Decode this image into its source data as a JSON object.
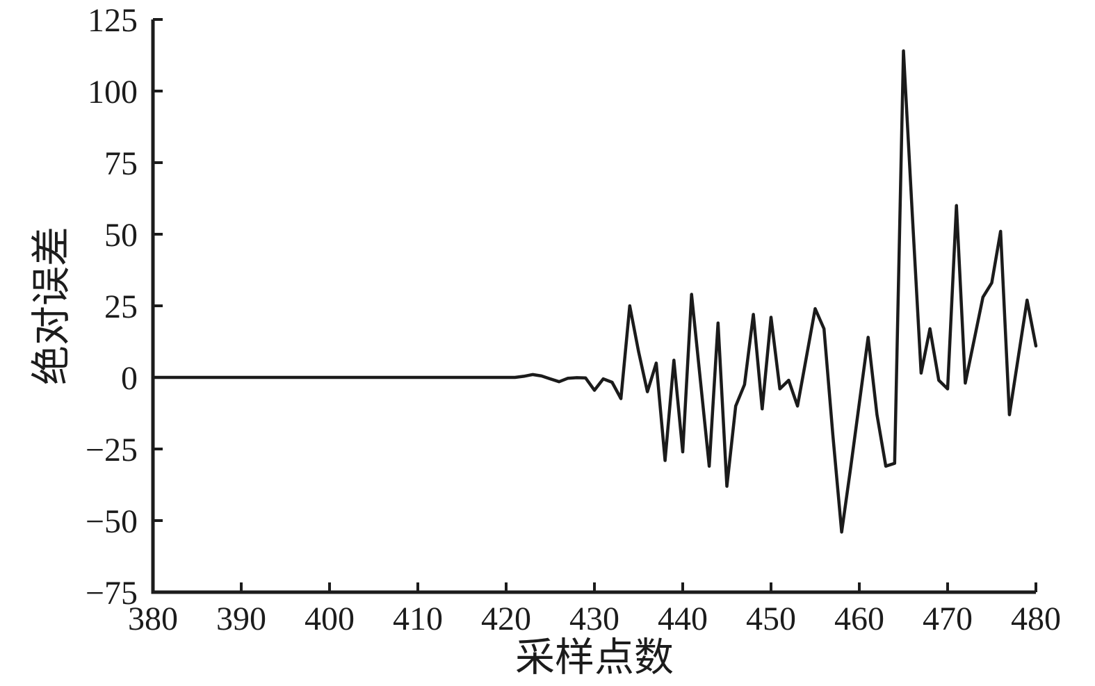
{
  "chart_data": {
    "type": "line",
    "title": "",
    "xlabel": "采样点数",
    "ylabel": "绝对误差",
    "xlim": [
      380,
      480
    ],
    "ylim": [
      -75,
      125
    ],
    "xticks": [
      380,
      390,
      400,
      410,
      420,
      430,
      440,
      450,
      460,
      470,
      480
    ],
    "yticks": [
      -75,
      -50,
      -25,
      0,
      25,
      50,
      75,
      100,
      125
    ],
    "grid": false,
    "legend_position": "none",
    "axis_color": "#1c1c1c",
    "line_color": "#1b1b1b",
    "background": "#ffffff",
    "series": [
      {
        "name": "绝对误差",
        "x": [
          380,
          381,
          382,
          383,
          384,
          385,
          386,
          387,
          388,
          389,
          390,
          391,
          392,
          393,
          394,
          395,
          396,
          397,
          398,
          399,
          400,
          401,
          402,
          403,
          404,
          405,
          406,
          407,
          408,
          409,
          410,
          411,
          412,
          413,
          414,
          415,
          416,
          417,
          418,
          419,
          420,
          421,
          422,
          423,
          424,
          425,
          426,
          427,
          428,
          429,
          430,
          431,
          432,
          433,
          434,
          435,
          436,
          437,
          438,
          439,
          440,
          441,
          442,
          443,
          444,
          445,
          446,
          447,
          448,
          449,
          450,
          451,
          452,
          453,
          454,
          455,
          456,
          457,
          458,
          459,
          460,
          461,
          462,
          463,
          464,
          465,
          466,
          467,
          468,
          469,
          470,
          471,
          472,
          473,
          474,
          475,
          476,
          477,
          478,
          479,
          480
        ],
        "values": [
          0,
          0,
          0,
          0,
          0,
          0,
          0,
          0,
          0,
          0,
          0,
          0,
          0,
          0,
          0,
          0,
          0,
          0,
          0,
          0,
          0,
          0,
          0,
          0,
          0,
          0,
          0,
          0,
          0,
          0,
          0,
          0,
          0,
          0,
          0,
          0,
          0,
          0,
          0,
          0,
          0,
          0,
          0.4,
          1,
          0.5,
          -0.5,
          -1.5,
          -0.3,
          -0.1,
          -0.2,
          -4.5,
          -0.5,
          -1.7,
          -7.4,
          25,
          9,
          -5,
          5,
          -29,
          6,
          -26,
          29,
          -1,
          -31,
          19,
          -38,
          -10,
          -2.5,
          22,
          -11,
          21,
          -4,
          -1,
          -10,
          7,
          24,
          17,
          -20,
          -54,
          -32,
          -9,
          14,
          -13,
          -31,
          -30,
          114,
          57,
          1.5,
          17,
          -1,
          -4,
          60,
          -2,
          13,
          28,
          33,
          51,
          -13,
          7,
          27,
          11
        ]
      }
    ]
  }
}
